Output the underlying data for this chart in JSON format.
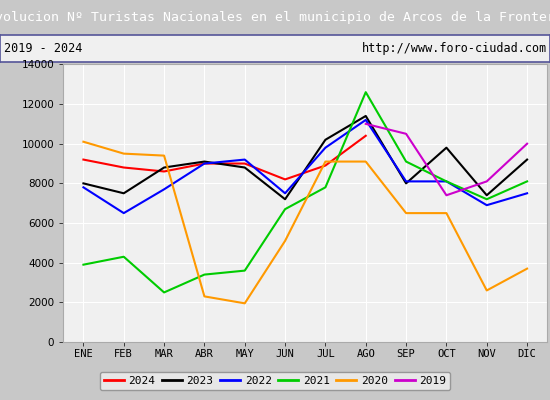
{
  "title": "Evolucion Nº Turistas Nacionales en el municipio de Arcos de la Frontera",
  "subtitle_left": "2019 - 2024",
  "subtitle_right": "http://www.foro-ciudad.com",
  "months": [
    "ENE",
    "FEB",
    "MAR",
    "ABR",
    "MAY",
    "JUN",
    "JUL",
    "AGO",
    "SEP",
    "OCT",
    "NOV",
    "DIC"
  ],
  "series": {
    "2024": {
      "color": "#ff0000",
      "data": [
        9200,
        8800,
        8600,
        9000,
        9000,
        8200,
        8900,
        10400,
        null,
        null,
        null,
        null
      ]
    },
    "2023": {
      "color": "#000000",
      "data": [
        8000,
        7500,
        8800,
        9100,
        8800,
        7200,
        10200,
        11400,
        8000,
        9800,
        7400,
        9200
      ]
    },
    "2022": {
      "color": "#0000ff",
      "data": [
        7800,
        6500,
        7700,
        9000,
        9200,
        7500,
        9800,
        11200,
        8100,
        8100,
        6900,
        7500
      ]
    },
    "2021": {
      "color": "#00cc00",
      "data": [
        3900,
        4300,
        2500,
        3400,
        3600,
        6700,
        7800,
        12600,
        9100,
        8100,
        7200,
        8100
      ]
    },
    "2020": {
      "color": "#ff9900",
      "data": [
        10100,
        9500,
        9400,
        2300,
        1950,
        5100,
        9100,
        9100,
        6500,
        6500,
        2600,
        3700
      ]
    },
    "2019": {
      "color": "#cc00cc",
      "data": [
        null,
        null,
        null,
        null,
        null,
        null,
        null,
        11000,
        10500,
        7400,
        8100,
        10000
      ]
    }
  },
  "ylim": [
    0,
    14000
  ],
  "yticks": [
    0,
    2000,
    4000,
    6000,
    8000,
    10000,
    12000,
    14000
  ],
  "title_bg_color": "#4a90d9",
  "title_text_color": "#ffffff",
  "subtitle_bg_color": "#f0f0f0",
  "plot_bg_color": "#f0f0f0",
  "grid_color": "#ffffff",
  "outer_bg_color": "#c8c8c8",
  "legend_order": [
    "2024",
    "2023",
    "2022",
    "2021",
    "2020",
    "2019"
  ],
  "title_fontsize": 9.5,
  "subtitle_fontsize": 8.5,
  "tick_fontsize": 7.5
}
